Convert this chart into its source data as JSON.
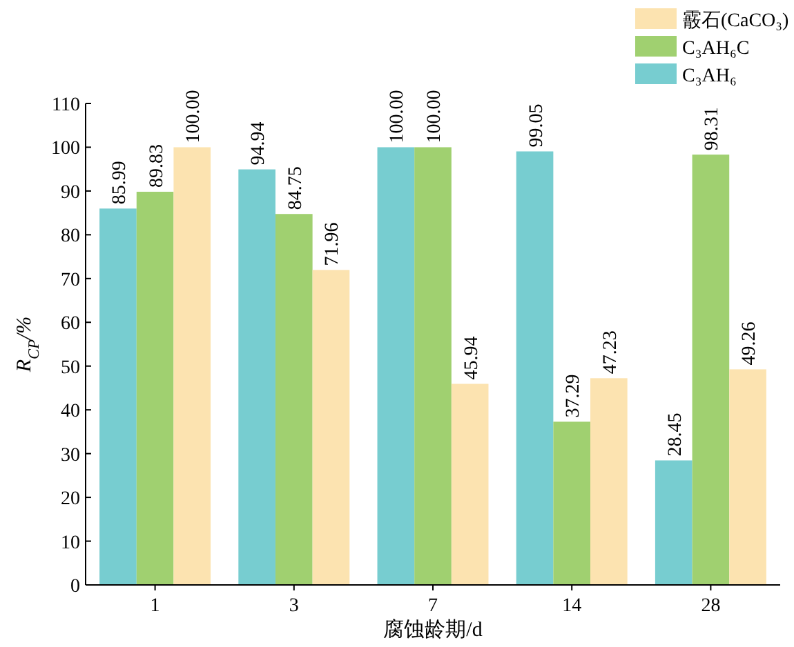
{
  "chart_data": {
    "type": "bar",
    "xlabel": "腐蚀龄期/d",
    "ylabel": "R$_{CP}$/%",
    "categories": [
      "1",
      "3",
      "7",
      "14",
      "28"
    ],
    "series": [
      {
        "name": "C₃AH₆",
        "color": "#77cdd0",
        "values": [
          85.99,
          94.94,
          100.0,
          99.05,
          28.45
        ],
        "value_labels": [
          "85.99",
          "94.94",
          "100.00",
          "99.05",
          "28.45"
        ]
      },
      {
        "name": "C₃AH₆C",
        "color": "#a0d070",
        "values": [
          89.83,
          84.75,
          100.0,
          37.29,
          98.31
        ],
        "value_labels": [
          "89.83",
          "84.75",
          "100.00",
          "37.29",
          "98.31"
        ]
      },
      {
        "name": "霰石(CaCO₃)",
        "color": "#fce3b0",
        "values": [
          100.0,
          71.96,
          45.94,
          47.23,
          49.26
        ],
        "value_labels": [
          "100.00",
          "71.96",
          "45.94",
          "47.23",
          "49.26"
        ]
      }
    ],
    "ylim": [
      0,
      110
    ],
    "yticks": [
      0,
      10,
      20,
      30,
      40,
      50,
      60,
      70,
      80,
      90,
      100,
      110
    ],
    "legend": "top right",
    "grid": false
  }
}
